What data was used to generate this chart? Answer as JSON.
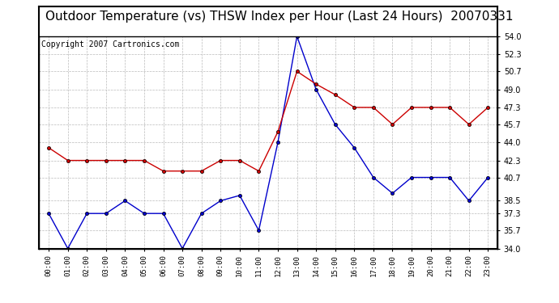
{
  "title": "Outdoor Temperature (vs) THSW Index per Hour (Last 24 Hours)  20070331",
  "copyright": "Copyright 2007 Cartronics.com",
  "hours": [
    "00:00",
    "01:00",
    "02:00",
    "03:00",
    "04:00",
    "05:00",
    "06:00",
    "07:00",
    "08:00",
    "09:00",
    "10:00",
    "11:00",
    "12:00",
    "13:00",
    "14:00",
    "15:00",
    "16:00",
    "17:00",
    "18:00",
    "19:00",
    "20:00",
    "21:00",
    "22:00",
    "23:00"
  ],
  "blue_data": [
    37.3,
    34.0,
    37.3,
    37.3,
    38.5,
    37.3,
    37.3,
    34.0,
    37.3,
    38.5,
    39.0,
    35.7,
    44.0,
    54.0,
    49.0,
    45.7,
    43.5,
    40.7,
    39.2,
    40.7,
    40.7,
    40.7,
    38.5,
    40.7
  ],
  "red_data": [
    43.5,
    42.3,
    42.3,
    42.3,
    42.3,
    42.3,
    41.3,
    41.3,
    41.3,
    42.3,
    42.3,
    41.3,
    45.0,
    50.7,
    49.5,
    48.5,
    47.3,
    47.3,
    45.7,
    47.3,
    47.3,
    47.3,
    45.7,
    47.3
  ],
  "ylim_min": 34.0,
  "ylim_max": 54.0,
  "yticks": [
    34.0,
    35.7,
    37.3,
    38.5,
    40.7,
    42.3,
    44.0,
    45.7,
    47.3,
    49.0,
    50.7,
    52.3,
    54.0
  ],
  "blue_color": "#0000cc",
  "red_color": "#cc0000",
  "grid_color": "#bbbbbb",
  "bg_color": "#ffffff",
  "title_fontsize": 11,
  "copyright_fontsize": 7
}
